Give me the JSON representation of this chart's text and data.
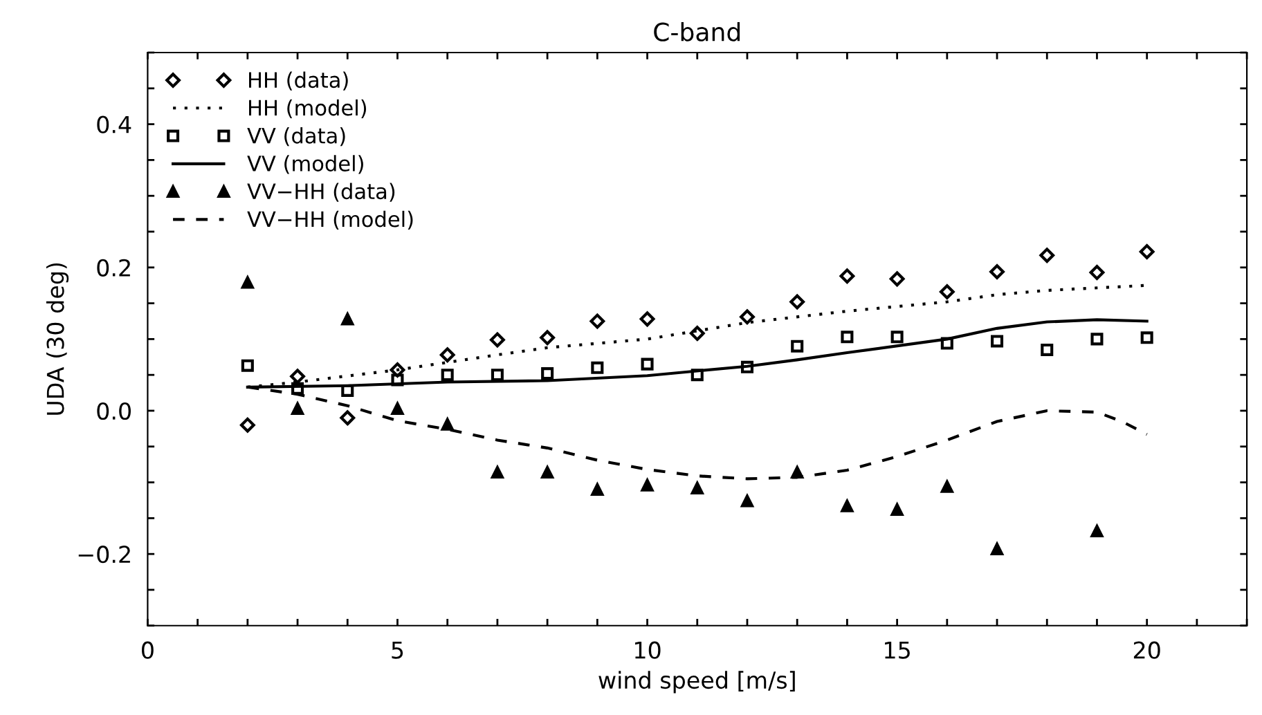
{
  "chart_data": {
    "type": "scatter",
    "title": "C-band",
    "xlabel": "wind speed [m/s]",
    "ylabel": "UDA (30 deg)",
    "xlim": [
      0,
      22
    ],
    "ylim": [
      -0.3,
      0.5
    ],
    "xticks": [
      0,
      {
        "value": 1,
        "label": null
      },
      {
        "value": 2,
        "label": null
      },
      {
        "value": 3,
        "label": null
      },
      {
        "value": 4,
        "label": null
      },
      5,
      {
        "value": 6,
        "label": null
      },
      {
        "value": 7,
        "label": null
      },
      {
        "value": 8,
        "label": null
      },
      {
        "value": 9,
        "label": null
      },
      10,
      {
        "value": 11,
        "label": null
      },
      {
        "value": 12,
        "label": null
      },
      {
        "value": 13,
        "label": null
      },
      {
        "value": 14,
        "label": null
      },
      15,
      {
        "value": 16,
        "label": null
      },
      {
        "value": 17,
        "label": null
      },
      {
        "value": 18,
        "label": null
      },
      {
        "value": 19,
        "label": null
      },
      20,
      {
        "value": 21,
        "label": null
      },
      {
        "value": 22,
        "label": null
      }
    ],
    "yticks": [
      {
        "value": -0.3,
        "label": null
      },
      {
        "value": -0.25,
        "label": null
      },
      {
        "value": -0.2,
        "label": "−0.2"
      },
      {
        "value": -0.15,
        "label": null
      },
      {
        "value": -0.1,
        "label": null
      },
      {
        "value": -0.05,
        "label": null
      },
      {
        "value": 0.0,
        "label": "0.0"
      },
      {
        "value": 0.05,
        "label": null
      },
      {
        "value": 0.1,
        "label": null
      },
      {
        "value": 0.15,
        "label": null
      },
      {
        "value": 0.2,
        "label": "0.2"
      },
      {
        "value": 0.25,
        "label": null
      },
      {
        "value": 0.3,
        "label": null
      },
      {
        "value": 0.35,
        "label": null
      },
      {
        "value": 0.4,
        "label": "0.4"
      },
      {
        "value": 0.45,
        "label": null
      },
      {
        "value": 0.5,
        "label": null
      }
    ],
    "legend": "top left",
    "grid": false,
    "series": [
      {
        "name": "HH (data)",
        "marker": "diamond",
        "color": "#000000",
        "x": [
          2,
          3,
          4,
          5,
          6,
          7,
          8,
          9,
          10,
          11,
          12,
          13,
          14,
          15,
          16,
          17,
          18,
          19,
          20
        ],
        "values": [
          -0.02,
          0.048,
          -0.01,
          0.057,
          0.078,
          0.099,
          0.102,
          0.125,
          0.128,
          0.108,
          0.131,
          0.152,
          0.188,
          0.184,
          0.166,
          0.194,
          0.217,
          0.193,
          0.222
        ]
      },
      {
        "name": "HH (model)",
        "type": "line",
        "line_style": "dotted",
        "color": "#000000",
        "x": [
          2,
          3,
          5,
          7,
          8,
          10,
          12,
          14,
          16,
          17,
          18,
          20
        ],
        "values": [
          0.033,
          0.04,
          0.057,
          0.078,
          0.088,
          0.1,
          0.123,
          0.139,
          0.152,
          0.162,
          0.168,
          0.175
        ]
      },
      {
        "name": "VV (data)",
        "marker": "square",
        "color": "#000000",
        "x": [
          2,
          3,
          4,
          5,
          6,
          7,
          8,
          9,
          10,
          11,
          12,
          13,
          14,
          15,
          16,
          17,
          18,
          19,
          20
        ],
        "values": [
          0.063,
          0.031,
          0.028,
          0.043,
          0.05,
          0.05,
          0.052,
          0.06,
          0.065,
          0.05,
          0.061,
          0.09,
          0.103,
          0.103,
          0.094,
          0.097,
          0.085,
          0.1,
          0.102
        ]
      },
      {
        "name": "VV (model)",
        "type": "line",
        "line_style": "solid",
        "color": "#000000",
        "x": [
          2,
          4,
          6,
          8,
          10,
          12,
          13,
          14,
          16,
          17,
          18,
          19,
          20
        ],
        "values": [
          0.033,
          0.035,
          0.04,
          0.042,
          0.049,
          0.062,
          0.071,
          0.081,
          0.1,
          0.115,
          0.124,
          0.127,
          0.125
        ]
      },
      {
        "name": "VV−HH (data)",
        "marker": "triangle",
        "color": "#000000",
        "x": [
          2,
          3,
          4,
          5,
          6,
          7,
          8,
          9,
          10,
          11,
          12,
          13,
          14,
          15,
          16,
          17,
          19
        ],
        "values": [
          0.179,
          0.003,
          0.128,
          0.003,
          -0.019,
          -0.086,
          -0.086,
          -0.11,
          -0.104,
          -0.108,
          -0.126,
          -0.086,
          -0.133,
          -0.138,
          -0.106,
          -0.193,
          -0.168
        ]
      },
      {
        "name": "VV−HH (model)",
        "type": "line",
        "line_style": "dashed",
        "color": "#000000",
        "x": [
          2,
          3,
          4,
          5,
          6,
          7,
          8,
          9,
          10,
          11,
          12,
          13,
          14,
          15,
          16,
          17,
          18,
          19,
          19.5,
          20
        ],
        "values": [
          0.033,
          0.023,
          0.007,
          -0.014,
          -0.026,
          -0.041,
          -0.052,
          -0.069,
          -0.082,
          -0.091,
          -0.095,
          -0.093,
          -0.083,
          -0.064,
          -0.041,
          -0.015,
          0.0,
          -0.002,
          -0.015,
          -0.033
        ]
      }
    ]
  }
}
